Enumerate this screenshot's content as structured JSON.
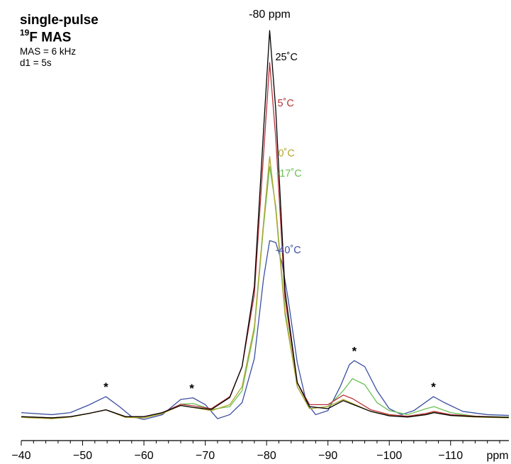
{
  "header": {
    "title": "single-pulse",
    "subtitle_sup": "19",
    "subtitle_main": "F MAS",
    "param_1": "MAS = 6 kHz",
    "param_2": "d1 = 5s"
  },
  "chart_data": {
    "type": "line",
    "title": "single-pulse ¹⁹F MAS",
    "xlabel": "ppm",
    "ylabel": "",
    "xlim": [
      -40,
      -119.5
    ],
    "x_reversed": true,
    "ylim": [
      0,
      1.0
    ],
    "y_axis_shown": false,
    "grid": false,
    "x_ticks": [
      -40,
      -50,
      -60,
      -70,
      -80,
      -90,
      -100,
      -110
    ],
    "x_tick_labels": [
      "−40",
      "−50",
      "−60",
      "−70",
      "−80",
      "−90",
      "−100",
      "−110"
    ],
    "x_unit_label": "ppm",
    "annotations": [
      {
        "text": "-80 ppm",
        "x": -80.5
      },
      {
        "text": "*",
        "x": -53.8
      },
      {
        "text": "*",
        "x": -67.8
      },
      {
        "text": "*",
        "x": -94.3
      },
      {
        "text": "*",
        "x": -107.2
      }
    ],
    "series": [
      {
        "name": "25˚C",
        "color": "#000000",
        "values": [
          [
            -40,
            0.035
          ],
          [
            -45,
            0.032
          ],
          [
            -48,
            0.035
          ],
          [
            -51,
            0.043
          ],
          [
            -53.8,
            0.052
          ],
          [
            -57,
            0.035
          ],
          [
            -60,
            0.035
          ],
          [
            -63,
            0.045
          ],
          [
            -66,
            0.063
          ],
          [
            -68,
            0.058
          ],
          [
            -71,
            0.053
          ],
          [
            -74,
            0.083
          ],
          [
            -76,
            0.16
          ],
          [
            -78,
            0.36
          ],
          [
            -79.5,
            0.75
          ],
          [
            -80.5,
            1.0
          ],
          [
            -81.5,
            0.8
          ],
          [
            -83,
            0.35
          ],
          [
            -85,
            0.12
          ],
          [
            -87,
            0.06
          ],
          [
            -90,
            0.055
          ],
          [
            -92.5,
            0.075
          ],
          [
            -94,
            0.066
          ],
          [
            -97,
            0.048
          ],
          [
            -100,
            0.037
          ],
          [
            -103,
            0.034
          ],
          [
            -106,
            0.04
          ],
          [
            -107.3,
            0.045
          ],
          [
            -110,
            0.038
          ],
          [
            -114,
            0.035
          ],
          [
            -119.5,
            0.033
          ]
        ]
      },
      {
        "name": "5˚C",
        "color": "#b5333b",
        "values": [
          [
            -40,
            0.035
          ],
          [
            -45,
            0.032
          ],
          [
            -48,
            0.035
          ],
          [
            -51,
            0.043
          ],
          [
            -53.8,
            0.052
          ],
          [
            -57,
            0.035
          ],
          [
            -60,
            0.035
          ],
          [
            -63,
            0.045
          ],
          [
            -66,
            0.066
          ],
          [
            -68,
            0.062
          ],
          [
            -71,
            0.055
          ],
          [
            -74,
            0.085
          ],
          [
            -76,
            0.16
          ],
          [
            -78,
            0.34
          ],
          [
            -79.5,
            0.69
          ],
          [
            -80.5,
            0.92
          ],
          [
            -81.5,
            0.73
          ],
          [
            -83,
            0.33
          ],
          [
            -85,
            0.12
          ],
          [
            -87,
            0.065
          ],
          [
            -90,
            0.065
          ],
          [
            -92.5,
            0.089
          ],
          [
            -94,
            0.08
          ],
          [
            -97,
            0.052
          ],
          [
            -100,
            0.04
          ],
          [
            -103,
            0.036
          ],
          [
            -106,
            0.043
          ],
          [
            -107.3,
            0.048
          ],
          [
            -110,
            0.04
          ],
          [
            -114,
            0.036
          ],
          [
            -119.5,
            0.033
          ]
        ]
      },
      {
        "name": "0˚C",
        "color": "#b2a52d",
        "values": [
          [
            -40,
            0.033
          ],
          [
            -45,
            0.03
          ],
          [
            -48,
            0.034
          ],
          [
            -51,
            0.043
          ],
          [
            -53.8,
            0.052
          ],
          [
            -57,
            0.033
          ],
          [
            -60,
            0.032
          ],
          [
            -63,
            0.043
          ],
          [
            -66,
            0.063
          ],
          [
            -68,
            0.058
          ],
          [
            -71,
            0.05
          ],
          [
            -74,
            0.065
          ],
          [
            -76,
            0.11
          ],
          [
            -78,
            0.26
          ],
          [
            -79.5,
            0.52
          ],
          [
            -80.5,
            0.685
          ],
          [
            -81.5,
            0.55
          ],
          [
            -83,
            0.29
          ],
          [
            -85,
            0.11
          ],
          [
            -87,
            0.055
          ],
          [
            -90,
            0.06
          ],
          [
            -92.5,
            0.078
          ],
          [
            -94,
            0.068
          ],
          [
            -97,
            0.048
          ],
          [
            -100,
            0.038
          ],
          [
            -103,
            0.035
          ],
          [
            -106,
            0.041
          ],
          [
            -107.3,
            0.046
          ],
          [
            -110,
            0.038
          ],
          [
            -114,
            0.034
          ],
          [
            -119.5,
            0.032
          ]
        ]
      },
      {
        "name": "-17˚C",
        "color": "#69c153",
        "values": [
          [
            -40,
            0.034
          ],
          [
            -45,
            0.03
          ],
          [
            -48,
            0.034
          ],
          [
            -51,
            0.043
          ],
          [
            -53.8,
            0.052
          ],
          [
            -57,
            0.034
          ],
          [
            -60,
            0.032
          ],
          [
            -63,
            0.043
          ],
          [
            -66,
            0.066
          ],
          [
            -68,
            0.068
          ],
          [
            -71,
            0.053
          ],
          [
            -74,
            0.06
          ],
          [
            -76,
            0.1
          ],
          [
            -78,
            0.25
          ],
          [
            -79.5,
            0.51
          ],
          [
            -80.5,
            0.66
          ],
          [
            -81.5,
            0.56
          ],
          [
            -83,
            0.3
          ],
          [
            -85,
            0.11
          ],
          [
            -87,
            0.055
          ],
          [
            -90,
            0.06
          ],
          [
            -92.5,
            0.1
          ],
          [
            -94,
            0.13
          ],
          [
            -96,
            0.115
          ],
          [
            -98,
            0.07
          ],
          [
            -100,
            0.05
          ],
          [
            -103,
            0.04
          ],
          [
            -106,
            0.055
          ],
          [
            -107.3,
            0.06
          ],
          [
            -110,
            0.045
          ],
          [
            -114,
            0.036
          ],
          [
            -119.5,
            0.034
          ]
        ]
      },
      {
        "name": "-40˚C",
        "color": "#3a4fa2",
        "values": [
          [
            -40,
            0.045
          ],
          [
            -45,
            0.04
          ],
          [
            -48,
            0.045
          ],
          [
            -51,
            0.064
          ],
          [
            -53.8,
            0.085
          ],
          [
            -56,
            0.06
          ],
          [
            -58,
            0.035
          ],
          [
            -60,
            0.028
          ],
          [
            -63,
            0.04
          ],
          [
            -66,
            0.078
          ],
          [
            -68,
            0.082
          ],
          [
            -70,
            0.065
          ],
          [
            -72,
            0.03
          ],
          [
            -74,
            0.04
          ],
          [
            -76,
            0.07
          ],
          [
            -78,
            0.18
          ],
          [
            -79.5,
            0.38
          ],
          [
            -80.5,
            0.475
          ],
          [
            -81.5,
            0.47
          ],
          [
            -82.5,
            0.42
          ],
          [
            -83.5,
            0.33
          ],
          [
            -85,
            0.17
          ],
          [
            -86.5,
            0.07
          ],
          [
            -88,
            0.04
          ],
          [
            -90,
            0.05
          ],
          [
            -92,
            0.11
          ],
          [
            -93.5,
            0.165
          ],
          [
            -94.3,
            0.175
          ],
          [
            -96,
            0.16
          ],
          [
            -98,
            0.1
          ],
          [
            -100,
            0.055
          ],
          [
            -102,
            0.04
          ],
          [
            -104,
            0.05
          ],
          [
            -107.2,
            0.085
          ],
          [
            -109,
            0.07
          ],
          [
            -112,
            0.048
          ],
          [
            -116,
            0.04
          ],
          [
            -119.5,
            0.038
          ]
        ]
      }
    ]
  }
}
